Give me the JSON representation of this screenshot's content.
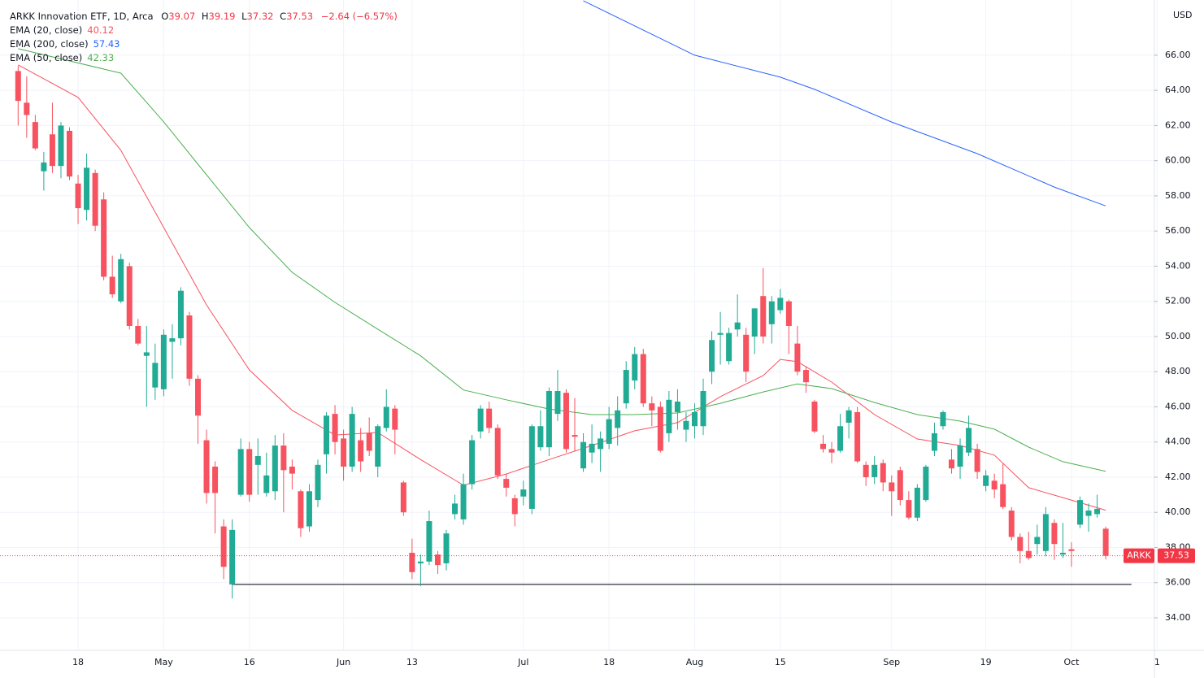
{
  "chart_data": {
    "type": "candlestick",
    "title": "ARKK Innovation ETF, 1D, Arca",
    "ohlc_labels": [
      "O",
      "H",
      "L",
      "C"
    ],
    "change": "−2.64 (−6.57%)",
    "currency": "USD",
    "symbol_label": "ARKK",
    "grid": true,
    "up_color": "#22ab94",
    "down_color": "#f7525f",
    "ylim": [
      32.15,
      69.14
    ],
    "yticks": [
      {
        "value": 34,
        "label": "34.00"
      },
      {
        "value": 36,
        "label": "36.00"
      },
      {
        "value": 38,
        "label": "38.00"
      },
      {
        "value": 40,
        "label": "40.00"
      },
      {
        "value": 42,
        "label": "42.00"
      },
      {
        "value": 44,
        "label": "44.00"
      },
      {
        "value": 46,
        "label": "46.00"
      },
      {
        "value": 48,
        "label": "48.00"
      },
      {
        "value": 50,
        "label": "50.00"
      },
      {
        "value": 52,
        "label": "52.00"
      },
      {
        "value": 54,
        "label": "54.00"
      },
      {
        "value": 56,
        "label": "56.00"
      },
      {
        "value": 58,
        "label": "58.00"
      },
      {
        "value": 60,
        "label": "60.00"
      },
      {
        "value": 62,
        "label": "62.00"
      },
      {
        "value": 64,
        "label": "64.00"
      },
      {
        "value": 66,
        "label": "66.00"
      }
    ],
    "categories": [
      null,
      null,
      null,
      null,
      null,
      null,
      null,
      "18",
      null,
      null,
      null,
      null,
      null,
      null,
      null,
      null,
      null,
      "May",
      null,
      null,
      null,
      null,
      null,
      null,
      null,
      null,
      null,
      "16",
      null,
      null,
      null,
      null,
      null,
      null,
      null,
      null,
      null,
      null,
      "Jun",
      null,
      null,
      null,
      null,
      null,
      null,
      null,
      "13",
      null,
      null,
      null,
      null,
      null,
      null,
      null,
      null,
      null,
      null,
      null,
      null,
      "Jul",
      null,
      null,
      null,
      null,
      null,
      null,
      null,
      null,
      null,
      "18",
      null,
      null,
      null,
      null,
      null,
      null,
      null,
      null,
      null,
      "Aug",
      null,
      null,
      null,
      null,
      null,
      null,
      null,
      null,
      null,
      "15",
      null,
      null,
      null,
      null,
      null,
      null,
      null,
      null,
      null,
      null,
      null,
      null,
      "Sep",
      null,
      null,
      null,
      null,
      null,
      null,
      null,
      null,
      null,
      null,
      "19",
      null,
      null,
      null,
      null,
      null,
      null,
      null,
      null,
      null,
      "Oct",
      null,
      null,
      null,
      null,
      null,
      null,
      null,
      null,
      null,
      "1"
    ],
    "series": [
      {
        "name": "ARKK",
        "open": [
          65.1,
          63.3,
          62.2,
          59.4,
          61.5,
          59.7,
          61.7,
          58.7,
          57.2,
          59.3,
          57.8,
          53.4,
          52.0,
          54.0,
          50.6,
          48.9,
          47.1,
          47.0,
          49.7,
          49.9,
          51.2,
          47.6,
          44.1,
          42.6,
          39.2,
          35.9,
          41.0,
          43.6,
          42.7,
          41.1,
          41.2,
          43.8,
          42.6,
          41.2,
          39.2,
          40.7,
          43.3,
          45.6,
          44.2,
          42.6,
          44.1,
          44.5,
          42.6,
          44.8,
          45.9,
          41.7,
          37.7,
          37.1,
          37.2,
          37.6,
          37.1,
          39.9,
          39.6,
          41.6,
          44.6,
          45.9,
          44.8,
          41.9,
          40.8,
          40.9,
          40.2,
          43.7,
          43.7,
          45.6,
          46.8,
          44.4,
          42.5,
          43.4,
          43.6,
          43.9,
          44.8,
          46.2,
          47.5,
          49.0,
          46.2,
          46.0,
          44.5,
          45.7,
          44.7,
          44.9,
          44.9,
          48.0,
          50.1,
          48.6,
          50.4,
          50.1,
          50.0,
          52.3,
          50.7,
          51.5,
          52.0,
          49.6,
          48.1,
          46.3,
          43.9,
          43.6,
          43.5,
          45.1,
          45.7,
          42.7,
          42.0,
          42.8,
          41.7,
          42.4,
          40.7,
          39.7,
          40.7,
          43.5,
          44.9,
          43.0,
          42.6,
          43.4,
          43.6,
          41.5,
          41.8,
          41.6,
          40.1,
          38.6,
          37.8,
          38.2,
          37.8,
          39.4,
          37.6,
          37.9,
          39.3,
          39.8,
          39.9,
          39.07,
          null,
          null,
          null,
          null,
          null,
          null
        ],
        "high": [
          65.4,
          64.8,
          62.6,
          60.5,
          63.3,
          62.2,
          61.9,
          59.2,
          60.4,
          59.5,
          58.2,
          54.6,
          54.7,
          54.2,
          51.0,
          50.6,
          49.6,
          50.4,
          50.7,
          52.8,
          51.4,
          47.8,
          44.7,
          42.9,
          39.6,
          39.6,
          44.2,
          44.0,
          44.2,
          43.4,
          44.4,
          44.5,
          43.0,
          41.3,
          41.6,
          43.0,
          45.7,
          46.1,
          44.7,
          46.0,
          44.8,
          45.4,
          45.0,
          47.0,
          46.1,
          41.8,
          38.5,
          37.6,
          40.1,
          37.8,
          39.0,
          41.0,
          42.2,
          44.4,
          46.1,
          46.3,
          45.0,
          42.2,
          41.0,
          41.8,
          45.0,
          45.8,
          47.1,
          48.1,
          47.0,
          46.5,
          44.5,
          45.0,
          44.6,
          46.0,
          46.6,
          48.6,
          49.4,
          49.3,
          46.6,
          46.3,
          46.9,
          47.0,
          45.7,
          46.2,
          47.6,
          50.3,
          51.4,
          50.5,
          52.4,
          50.5,
          51.6,
          53.9,
          52.3,
          52.7,
          52.1,
          50.6,
          48.3,
          46.4,
          44.4,
          44.0,
          45.6,
          46.0,
          46.0,
          42.9,
          43.2,
          43.0,
          42.1,
          42.6,
          41.2,
          41.6,
          42.7,
          45.1,
          45.8,
          43.6,
          44.2,
          45.5,
          43.9,
          42.4,
          42.2,
          42.8,
          40.3,
          38.8,
          38.9,
          39.3,
          40.3,
          39.6,
          39.4,
          38.3,
          40.9,
          40.5,
          41.0,
          39.19,
          null,
          null,
          null,
          null,
          null,
          null
        ],
        "low": [
          62.0,
          61.3,
          60.6,
          58.3,
          59.3,
          59.0,
          58.9,
          56.4,
          56.6,
          56.0,
          53.2,
          52.2,
          51.9,
          50.4,
          49.5,
          46.0,
          46.4,
          46.6,
          47.6,
          49.5,
          47.2,
          43.9,
          40.5,
          38.8,
          36.2,
          35.1,
          40.9,
          40.6,
          41.0,
          40.9,
          40.7,
          40.0,
          41.3,
          38.6,
          38.9,
          40.3,
          42.2,
          43.3,
          41.8,
          42.3,
          42.3,
          43.2,
          42.0,
          44.6,
          43.3,
          39.8,
          36.2,
          35.8,
          37.0,
          36.5,
          36.7,
          39.6,
          39.3,
          41.3,
          44.2,
          44.5,
          41.9,
          40.9,
          39.2,
          40.4,
          39.9,
          43.5,
          43.2,
          45.2,
          43.4,
          43.5,
          42.3,
          42.8,
          42.3,
          43.6,
          43.8,
          45.9,
          47.0,
          46.0,
          44.9,
          43.4,
          44.0,
          44.7,
          44.0,
          44.2,
          44.4,
          47.3,
          48.4,
          48.4,
          50.0,
          47.4,
          49.0,
          49.6,
          49.6,
          51.3,
          49.0,
          47.8,
          46.8,
          44.5,
          43.4,
          42.8,
          43.4,
          44.2,
          42.8,
          41.5,
          41.6,
          41.2,
          39.8,
          40.4,
          39.6,
          39.5,
          40.6,
          43.2,
          44.7,
          42.2,
          41.9,
          43.2,
          41.9,
          41.2,
          40.8,
          40.2,
          38.4,
          37.1,
          37.3,
          37.6,
          37.5,
          37.3,
          37.4,
          36.9,
          39.1,
          38.9,
          39.7,
          37.32,
          null,
          null,
          null,
          null,
          null,
          null
        ],
        "close": [
          63.4,
          62.6,
          60.7,
          59.9,
          59.7,
          62.0,
          59.1,
          57.3,
          59.6,
          56.3,
          53.4,
          52.4,
          54.4,
          50.6,
          49.6,
          49.1,
          48.5,
          50.1,
          49.9,
          52.6,
          47.6,
          45.5,
          41.1,
          41.1,
          36.9,
          39.0,
          43.6,
          41.0,
          43.2,
          42.1,
          43.8,
          42.4,
          42.2,
          39.1,
          41.2,
          42.7,
          45.5,
          44.0,
          42.6,
          45.6,
          42.9,
          43.5,
          44.9,
          46.0,
          44.7,
          40.0,
          36.6,
          37.2,
          39.5,
          37.0,
          38.8,
          40.5,
          41.6,
          44.1,
          45.9,
          44.8,
          42.1,
          41.4,
          39.9,
          41.3,
          44.9,
          44.9,
          46.9,
          46.9,
          43.6,
          44.3,
          44.0,
          43.9,
          44.2,
          45.3,
          45.8,
          48.1,
          49.0,
          46.2,
          45.8,
          43.5,
          46.4,
          46.3,
          45.2,
          45.7,
          46.9,
          49.8,
          50.2,
          50.2,
          50.8,
          48.0,
          51.6,
          50.0,
          52.0,
          52.2,
          50.6,
          48.0,
          47.4,
          44.6,
          43.6,
          43.4,
          44.9,
          45.8,
          42.9,
          42.0,
          42.7,
          41.7,
          41.2,
          40.7,
          39.7,
          41.4,
          42.6,
          44.5,
          45.7,
          42.5,
          43.8,
          44.8,
          42.3,
          42.1,
          41.3,
          40.3,
          38.6,
          37.8,
          37.4,
          38.6,
          39.9,
          38.2,
          37.7,
          37.8,
          40.7,
          40.1,
          40.2,
          37.53,
          null,
          null,
          null,
          null,
          null,
          null
        ]
      }
    ],
    "lines": [
      {
        "name": "EMA (20, close)",
        "color": "#f7525f",
        "x": [
          0,
          7,
          12,
          17,
          22,
          27,
          32,
          37,
          42,
          47,
          52,
          57,
          62,
          67,
          72,
          77,
          82,
          87,
          89,
          91,
          95,
          100,
          105,
          110,
          114,
          118,
          122,
          127
        ],
        "values": [
          65.45,
          63.6,
          60.59,
          56.2,
          51.8,
          48.1,
          45.8,
          44.4,
          44.54,
          43.0,
          41.54,
          42.18,
          43.0,
          43.8,
          44.64,
          45.1,
          46.58,
          47.78,
          48.7,
          48.57,
          47.41,
          45.56,
          44.17,
          43.8,
          43.25,
          41.4,
          40.84,
          40.12
        ]
      },
      {
        "name": "EMA (200, close)",
        "color": "#2962ff",
        "x": [
          66,
          79,
          89,
          93,
          102,
          112,
          121,
          127
        ],
        "values": [
          69.1,
          66.0,
          64.75,
          64.06,
          62.2,
          60.4,
          58.5,
          57.43
        ]
      },
      {
        "name": "EMA (50, close)",
        "color": "#4caf50",
        "x": [
          0,
          12,
          17,
          22,
          27,
          32,
          37,
          42,
          47,
          52,
          57,
          62,
          67,
          72,
          77,
          82,
          87,
          91,
          95,
          100,
          105,
          110,
          114,
          118,
          122,
          127
        ],
        "values": [
          66.37,
          64.98,
          62.21,
          59.2,
          56.2,
          53.65,
          51.94,
          50.42,
          48.9,
          46.96,
          46.4,
          45.88,
          45.56,
          45.56,
          45.65,
          46.2,
          46.85,
          47.3,
          47.04,
          46.25,
          45.56,
          45.19,
          44.73,
          43.71,
          42.88,
          42.33
        ]
      }
    ],
    "hline": {
      "value": 35.9,
      "x": [
        25,
        130
      ],
      "color": "#000000"
    }
  }
}
